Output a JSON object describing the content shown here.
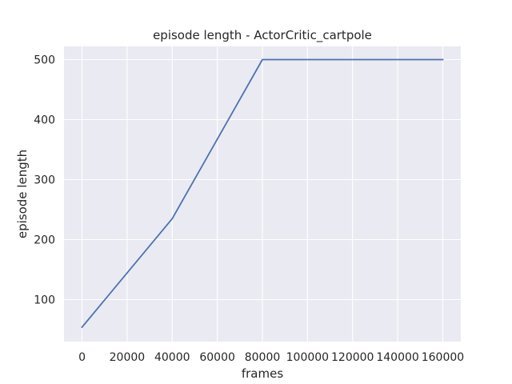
{
  "chart_data": {
    "type": "line",
    "title": "episode length - ActorCritic_cartpole",
    "xlabel": "frames",
    "ylabel": "episode length",
    "xlim": [
      -8000,
      168000
    ],
    "ylim": [
      30,
      522
    ],
    "xticks": [
      0,
      20000,
      40000,
      60000,
      80000,
      100000,
      120000,
      140000,
      160000
    ],
    "yticks": [
      100,
      200,
      300,
      400,
      500
    ],
    "grid": true,
    "series": [
      {
        "color": "#4c72b0",
        "x": [
          0,
          40000,
          80000,
          160000
        ],
        "y": [
          54,
          235,
          500,
          500
        ]
      }
    ],
    "colors": {
      "background": "#eaeaf2",
      "grid": "#ffffff",
      "text": "#262626"
    }
  }
}
